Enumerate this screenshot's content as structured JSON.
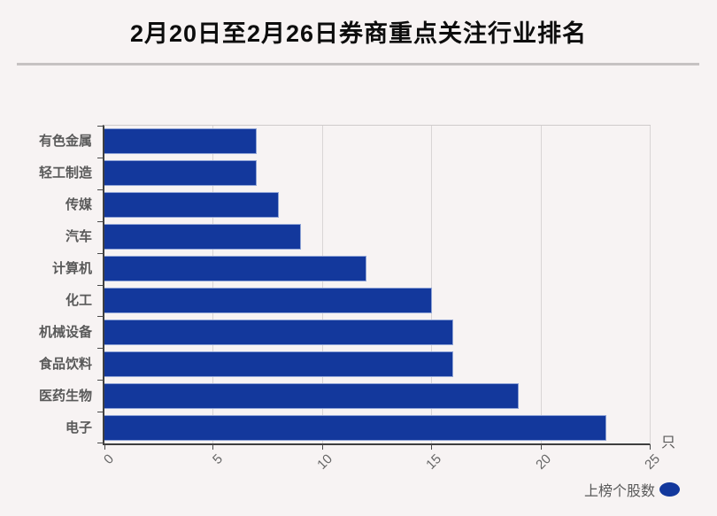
{
  "title": "2月20日至2月26日券商重点关注行业排名",
  "legend": {
    "series_label": "上榜个股数"
  },
  "axis": {
    "unit_label": "只"
  },
  "colors": {
    "background": "#f7f3f3",
    "bar": "#13389c",
    "grid": "#d9d5d5",
    "axis_line": "#3f3f3f",
    "text_gray": "#595959",
    "title_text": "#0d0d0d",
    "divider": "#c6c2c2"
  },
  "chart_data": {
    "type": "bar",
    "orientation": "horizontal",
    "title": "2月20日至2月26日券商重点关注行业排名",
    "categories_top_to_bottom": [
      "有色金属",
      "轻工制造",
      "传媒",
      "汽车",
      "计算机",
      "化工",
      "机械设备",
      "食品饮料",
      "医药生物",
      "电子"
    ],
    "values": [
      7,
      7,
      8,
      9,
      12,
      15,
      16,
      16,
      19,
      23
    ],
    "series": [
      {
        "name": "上榜个股数",
        "values": [
          7,
          7,
          8,
          9,
          12,
          15,
          16,
          16,
          19,
          23
        ]
      }
    ],
    "x_unit": "只",
    "xlabel": "",
    "ylabel": "",
    "xticks": [
      0,
      5,
      10,
      15,
      20,
      25
    ],
    "xlim": [
      0,
      25
    ],
    "grid": true,
    "legend_position": "bottom-right"
  }
}
